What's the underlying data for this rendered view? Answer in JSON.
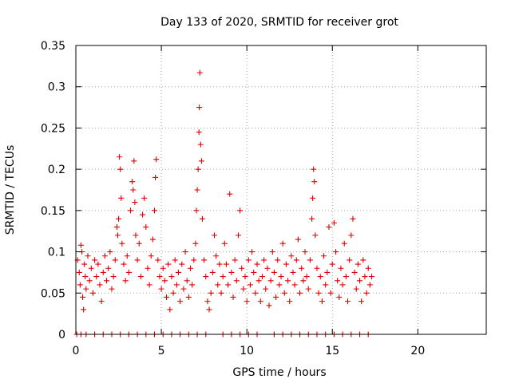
{
  "chart_data": {
    "type": "scatter",
    "title": "Day 133 of 2020, SRMTID for receiver grot",
    "xlabel": "GPS time / hours",
    "ylabel": "SRMTID / TECUs",
    "xlim": [
      0,
      24
    ],
    "ylim": [
      0,
      0.35
    ],
    "x_ticks": [
      0,
      5,
      10,
      15,
      20
    ],
    "x_tick_labels": [
      "0",
      "5",
      "10",
      "15",
      "20"
    ],
    "y_ticks": [
      0,
      0.05,
      0.1,
      0.15,
      0.2,
      0.25,
      0.3,
      0.35
    ],
    "y_tick_labels": [
      "0",
      "0.05",
      "0.1",
      "0.15",
      "0.2",
      "0.25",
      "0.3",
      "0.35"
    ],
    "grid": true,
    "marker": "+",
    "colors": {
      "series": "#e00000",
      "grid": "#a0a0a0",
      "axis": "#000000"
    },
    "series": [
      {
        "name": "SRMTID",
        "points": [
          [
            0.1,
            0.09
          ],
          [
            0.2,
            0.075
          ],
          [
            0.25,
            0.06
          ],
          [
            0.3,
            0.108
          ],
          [
            0.35,
            0.1
          ],
          [
            0.4,
            0.045
          ],
          [
            0.45,
            0.03
          ],
          [
            0.5,
            0.085
          ],
          [
            0.55,
            0.07
          ],
          [
            0.6,
            0.055
          ],
          [
            0.7,
            0.095
          ],
          [
            0.8,
            0.065
          ],
          [
            0.9,
            0.08
          ],
          [
            1.0,
            0.05
          ],
          [
            1.1,
            0.09
          ],
          [
            1.2,
            0.07
          ],
          [
            1.3,
            0.085
          ],
          [
            1.4,
            0.06
          ],
          [
            1.5,
            0.04
          ],
          [
            1.6,
            0.075
          ],
          [
            1.7,
            0.095
          ],
          [
            1.8,
            0.065
          ],
          [
            1.9,
            0.08
          ],
          [
            2.0,
            0.1
          ],
          [
            2.1,
            0.055
          ],
          [
            2.2,
            0.07
          ],
          [
            2.3,
            0.09
          ],
          [
            2.4,
            0.13
          ],
          [
            2.45,
            0.12
          ],
          [
            2.5,
            0.14
          ],
          [
            2.55,
            0.215
          ],
          [
            2.6,
            0.2
          ],
          [
            2.65,
            0.165
          ],
          [
            2.7,
            0.11
          ],
          [
            2.8,
            0.085
          ],
          [
            2.9,
            0.065
          ],
          [
            3.0,
            0.095
          ],
          [
            3.1,
            0.075
          ],
          [
            3.2,
            0.15
          ],
          [
            3.3,
            0.185
          ],
          [
            3.35,
            0.175
          ],
          [
            3.4,
            0.21
          ],
          [
            3.45,
            0.16
          ],
          [
            3.5,
            0.12
          ],
          [
            3.6,
            0.09
          ],
          [
            3.7,
            0.11
          ],
          [
            3.8,
            0.07
          ],
          [
            3.9,
            0.145
          ],
          [
            4.0,
            0.165
          ],
          [
            4.1,
            0.13
          ],
          [
            4.2,
            0.08
          ],
          [
            4.3,
            0.06
          ],
          [
            4.4,
            0.095
          ],
          [
            4.5,
            0.115
          ],
          [
            4.6,
            0.15
          ],
          [
            4.65,
            0.19
          ],
          [
            4.7,
            0.212
          ],
          [
            4.8,
            0.09
          ],
          [
            4.9,
            0.07
          ],
          [
            5.0,
            0.055
          ],
          [
            5.1,
            0.08
          ],
          [
            5.2,
            0.065
          ],
          [
            5.3,
            0.045
          ],
          [
            5.4,
            0.085
          ],
          [
            5.5,
            0.03
          ],
          [
            5.6,
            0.07
          ],
          [
            5.7,
            0.05
          ],
          [
            5.8,
            0.09
          ],
          [
            5.9,
            0.06
          ],
          [
            6.0,
            0.075
          ],
          [
            6.1,
            0.04
          ],
          [
            6.2,
            0.085
          ],
          [
            6.3,
            0.055
          ],
          [
            6.4,
            0.1
          ],
          [
            6.5,
            0.065
          ],
          [
            6.6,
            0.045
          ],
          [
            6.7,
            0.08
          ],
          [
            6.8,
            0.06
          ],
          [
            6.9,
            0.09
          ],
          [
            7.0,
            0.11
          ],
          [
            7.05,
            0.15
          ],
          [
            7.1,
            0.175
          ],
          [
            7.15,
            0.2
          ],
          [
            7.2,
            0.245
          ],
          [
            7.22,
            0.275
          ],
          [
            7.25,
            0.317
          ],
          [
            7.3,
            0.23
          ],
          [
            7.35,
            0.21
          ],
          [
            7.4,
            0.14
          ],
          [
            7.5,
            0.09
          ],
          [
            7.6,
            0.07
          ],
          [
            7.7,
            0.04
          ],
          [
            7.8,
            0.03
          ],
          [
            7.9,
            0.05
          ],
          [
            8.0,
            0.075
          ],
          [
            8.1,
            0.12
          ],
          [
            8.2,
            0.095
          ],
          [
            8.3,
            0.06
          ],
          [
            8.4,
            0.085
          ],
          [
            8.5,
            0.05
          ],
          [
            8.6,
            0.07
          ],
          [
            8.7,
            0.11
          ],
          [
            8.8,
            0.085
          ],
          [
            8.9,
            0.06
          ],
          [
            9.0,
            0.17
          ],
          [
            9.1,
            0.075
          ],
          [
            9.2,
            0.045
          ],
          [
            9.3,
            0.09
          ],
          [
            9.4,
            0.065
          ],
          [
            9.5,
            0.12
          ],
          [
            9.6,
            0.15
          ],
          [
            9.7,
            0.08
          ],
          [
            9.8,
            0.055
          ],
          [
            9.9,
            0.07
          ],
          [
            10.0,
            0.04
          ],
          [
            10.1,
            0.09
          ],
          [
            10.2,
            0.06
          ],
          [
            10.3,
            0.1
          ],
          [
            10.4,
            0.075
          ],
          [
            10.5,
            0.05
          ],
          [
            10.6,
            0.085
          ],
          [
            10.7,
            0.065
          ],
          [
            10.8,
            0.04
          ],
          [
            10.9,
            0.07
          ],
          [
            11.0,
            0.09
          ],
          [
            11.1,
            0.055
          ],
          [
            11.2,
            0.08
          ],
          [
            11.3,
            0.035
          ],
          [
            11.4,
            0.065
          ],
          [
            11.5,
            0.1
          ],
          [
            11.6,
            0.075
          ],
          [
            11.7,
            0.045
          ],
          [
            11.8,
            0.09
          ],
          [
            11.9,
            0.06
          ],
          [
            12.0,
            0.07
          ],
          [
            12.1,
            0.11
          ],
          [
            12.2,
            0.05
          ],
          [
            12.3,
            0.085
          ],
          [
            12.4,
            0.065
          ],
          [
            12.5,
            0.04
          ],
          [
            12.6,
            0.095
          ],
          [
            12.7,
            0.075
          ],
          [
            12.8,
            0.06
          ],
          [
            12.9,
            0.09
          ],
          [
            13.0,
            0.115
          ],
          [
            13.1,
            0.05
          ],
          [
            13.2,
            0.08
          ],
          [
            13.3,
            0.065
          ],
          [
            13.4,
            0.1
          ],
          [
            13.5,
            0.07
          ],
          [
            13.6,
            0.055
          ],
          [
            13.7,
            0.09
          ],
          [
            13.8,
            0.14
          ],
          [
            13.85,
            0.165
          ],
          [
            13.9,
            0.2
          ],
          [
            13.95,
            0.185
          ],
          [
            14.0,
            0.12
          ],
          [
            14.1,
            0.08
          ],
          [
            14.2,
            0.05
          ],
          [
            14.3,
            0.07
          ],
          [
            14.4,
            0.04
          ],
          [
            14.5,
            0.095
          ],
          [
            14.6,
            0.06
          ],
          [
            14.7,
            0.075
          ],
          [
            14.8,
            0.13
          ],
          [
            14.9,
            0.05
          ],
          [
            15.0,
            0.085
          ],
          [
            15.1,
            0.135
          ],
          [
            15.2,
            0.1
          ],
          [
            15.3,
            0.065
          ],
          [
            15.4,
            0.045
          ],
          [
            15.5,
            0.08
          ],
          [
            15.6,
            0.06
          ],
          [
            15.7,
            0.11
          ],
          [
            15.8,
            0.07
          ],
          [
            15.9,
            0.04
          ],
          [
            16.0,
            0.09
          ],
          [
            16.1,
            0.12
          ],
          [
            16.2,
            0.14
          ],
          [
            16.3,
            0.075
          ],
          [
            16.4,
            0.055
          ],
          [
            16.5,
            0.085
          ],
          [
            16.6,
            0.065
          ],
          [
            16.7,
            0.04
          ],
          [
            16.8,
            0.09
          ],
          [
            16.9,
            0.07
          ],
          [
            17.0,
            0.05
          ],
          [
            17.1,
            0.08
          ],
          [
            17.2,
            0.06
          ],
          [
            17.3,
            0.07
          ],
          [
            0.05,
            0.0
          ],
          [
            0.3,
            0.0
          ],
          [
            0.6,
            0.0
          ],
          [
            1.1,
            0.0
          ],
          [
            1.6,
            0.0
          ],
          [
            2.1,
            0.0
          ],
          [
            2.6,
            0.0
          ],
          [
            3.1,
            0.0
          ],
          [
            3.6,
            0.0
          ],
          [
            4.1,
            0.0
          ],
          [
            4.6,
            0.0
          ],
          [
            5.1,
            0.0
          ],
          [
            5.6,
            0.0
          ],
          [
            6.1,
            0.0
          ],
          [
            6.6,
            0.0
          ],
          [
            7.1,
            0.0
          ],
          [
            7.6,
            0.0
          ],
          [
            8.6,
            0.0
          ],
          [
            9.1,
            0.0
          ],
          [
            9.6,
            0.0
          ],
          [
            10.1,
            0.0
          ],
          [
            10.6,
            0.0
          ],
          [
            11.6,
            0.0
          ],
          [
            12.1,
            0.0
          ],
          [
            12.6,
            0.0
          ],
          [
            13.1,
            0.0
          ],
          [
            13.6,
            0.0
          ],
          [
            14.1,
            0.0
          ],
          [
            14.6,
            0.0
          ],
          [
            15.1,
            0.0
          ],
          [
            15.6,
            0.0
          ],
          [
            16.1,
            0.0
          ],
          [
            16.6,
            0.0
          ],
          [
            17.1,
            0.0
          ]
        ]
      }
    ]
  }
}
